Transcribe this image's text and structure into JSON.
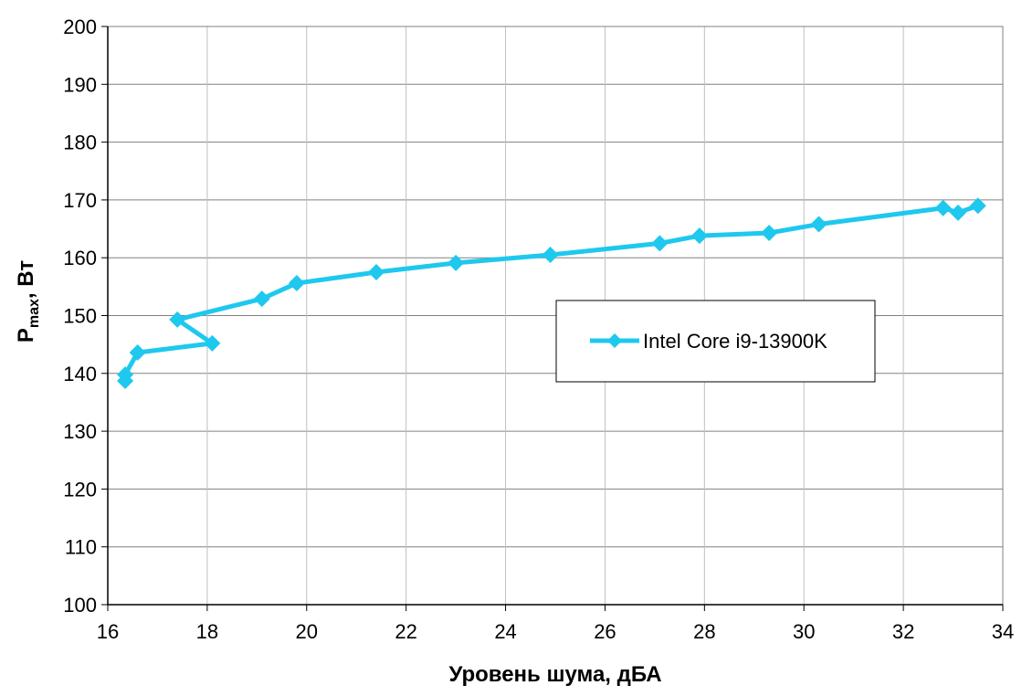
{
  "chart_data": {
    "type": "line",
    "title": "",
    "xlabel": "Уровень шума, дБА",
    "ylabel_main": "P",
    "ylabel_sub": "max",
    "ylabel_rest": ", Вт",
    "xlim": [
      16,
      34
    ],
    "ylim": [
      100,
      200
    ],
    "x_ticks": [
      16,
      18,
      20,
      22,
      24,
      26,
      28,
      30,
      32,
      34
    ],
    "y_ticks": [
      100,
      110,
      120,
      130,
      140,
      150,
      160,
      170,
      180,
      190,
      200
    ],
    "grid": true,
    "legend_position": "center-right",
    "series": [
      {
        "name": "Intel Core i9-13900K",
        "color": "#1ec8ee",
        "marker": "diamond",
        "x": [
          16.35,
          16.35,
          16.6,
          18.1,
          17.4,
          19.1,
          19.8,
          21.4,
          23.0,
          24.9,
          27.1,
          27.9,
          29.3,
          30.3,
          32.8,
          33.1,
          33.5
        ],
        "y": [
          138.7,
          139.8,
          143.6,
          145.2,
          149.3,
          152.9,
          155.6,
          157.5,
          159.1,
          160.5,
          162.5,
          163.8,
          164.3,
          165.8,
          168.6,
          167.8,
          169.0
        ]
      }
    ]
  }
}
